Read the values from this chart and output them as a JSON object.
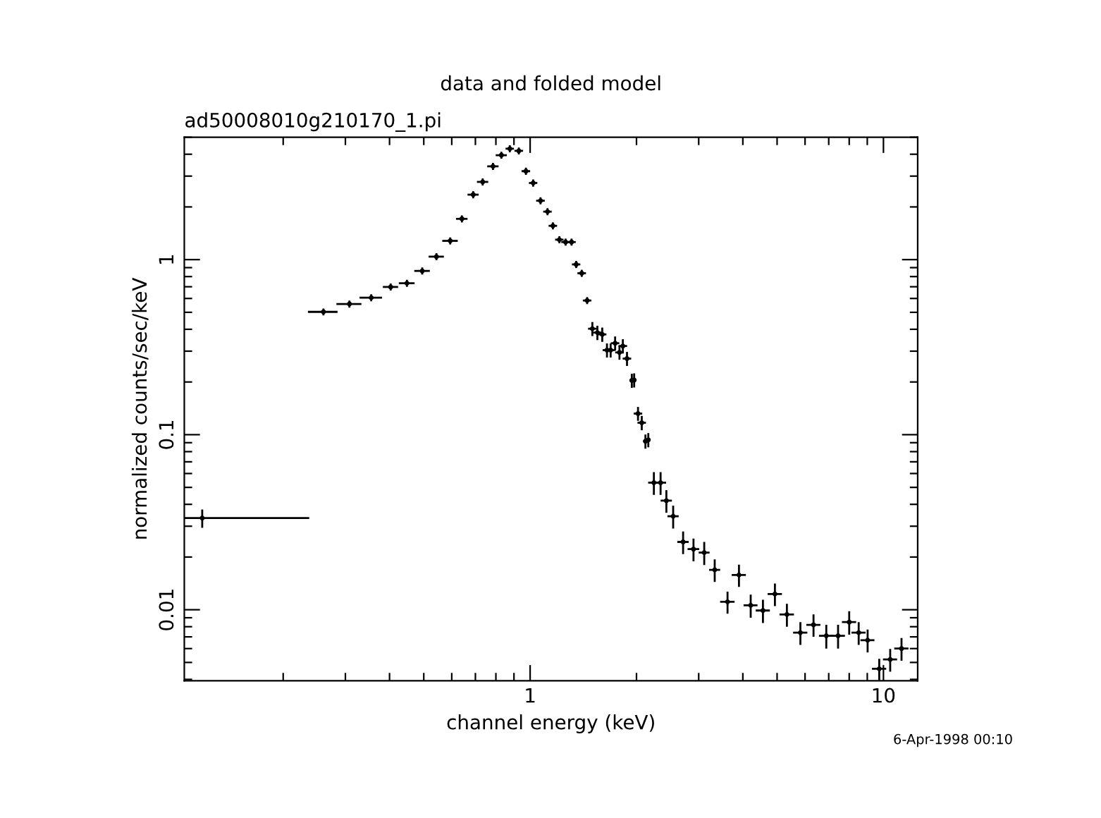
{
  "chart_data": {
    "type": "scatter",
    "title": "data and folded model",
    "subtitle": "ad50008010g210170_1.pi",
    "xlabel": "channel energy (keV)",
    "ylabel": "normalized counts/sec/keV",
    "annotations": [
      "6-Apr-1998 00:10"
    ],
    "log": "xy",
    "grid": false,
    "legend": false,
    "marker": "circle",
    "xlim": [
      0.105,
      12.5
    ],
    "ylim": [
      0.00393,
      5
    ],
    "xticks": [
      {
        "value": 0.2,
        "label": null
      },
      {
        "value": 0.3,
        "label": null
      },
      {
        "value": 0.4,
        "label": null
      },
      {
        "value": 0.5,
        "label": null
      },
      {
        "value": 0.6,
        "label": null
      },
      {
        "value": 0.7,
        "label": null
      },
      {
        "value": 0.8,
        "label": null
      },
      {
        "value": 0.9,
        "label": null
      },
      1,
      {
        "value": 2,
        "label": null
      },
      {
        "value": 3,
        "label": null
      },
      {
        "value": 4,
        "label": null
      },
      {
        "value": 5,
        "label": null
      },
      {
        "value": 6,
        "label": null
      },
      {
        "value": 7,
        "label": null
      },
      {
        "value": 8,
        "label": null
      },
      {
        "value": 9,
        "label": null
      },
      10
    ],
    "yticks": [
      {
        "value": 0.004,
        "label": null
      },
      {
        "value": 0.005,
        "label": null
      },
      {
        "value": 0.006,
        "label": null
      },
      {
        "value": 0.007,
        "label": null
      },
      {
        "value": 0.008,
        "label": null
      },
      {
        "value": 0.009,
        "label": null
      },
      0.01,
      {
        "value": 0.02,
        "label": null
      },
      {
        "value": 0.03,
        "label": null
      },
      {
        "value": 0.04,
        "label": null
      },
      {
        "value": 0.05,
        "label": null
      },
      {
        "value": 0.06,
        "label": null
      },
      {
        "value": 0.07,
        "label": null
      },
      {
        "value": 0.08,
        "label": null
      },
      {
        "value": 0.09,
        "label": null
      },
      0.1,
      {
        "value": 0.2,
        "label": null
      },
      {
        "value": 0.3,
        "label": null
      },
      {
        "value": 0.4,
        "label": null
      },
      {
        "value": 0.5,
        "label": null
      },
      {
        "value": 0.6,
        "label": null
      },
      {
        "value": 0.7,
        "label": null
      },
      {
        "value": 0.8,
        "label": null
      },
      {
        "value": 0.9,
        "label": null
      },
      1,
      {
        "value": 2,
        "label": null
      },
      {
        "value": 3,
        "label": null
      },
      {
        "value": 4,
        "label": null
      },
      {
        "value": 5,
        "label": null
      }
    ],
    "series": [
      {
        "color": "#000000",
        "x": [
          0.118,
          0.26,
          0.308,
          0.355,
          0.403,
          0.448,
          0.495,
          0.543,
          0.594,
          0.641,
          0.69,
          0.734,
          0.785,
          0.829,
          0.876,
          0.929,
          0.973,
          1.02,
          1.07,
          1.12,
          1.16,
          1.21,
          1.26,
          1.31,
          1.35,
          1.4,
          1.45,
          1.5,
          1.55,
          1.6,
          1.65,
          1.69,
          1.74,
          1.79,
          1.83,
          1.88,
          1.94,
          1.97,
          2.02,
          2.07,
          2.12,
          2.16,
          2.24,
          2.34,
          2.43,
          2.54,
          2.71,
          2.9,
          3.11,
          3.33,
          3.62,
          3.9,
          4.21,
          4.56,
          4.93,
          5.33,
          5.82,
          6.34,
          6.89,
          7.44,
          8.0,
          8.51,
          9.02,
          9.73,
          10.45,
          11.25
        ],
        "values": [
          0.0334,
          0.503,
          0.558,
          0.606,
          0.698,
          0.733,
          0.862,
          1.04,
          1.28,
          1.71,
          2.35,
          2.78,
          3.41,
          3.95,
          4.3,
          4.18,
          3.2,
          2.74,
          2.17,
          1.88,
          1.56,
          1.3,
          1.26,
          1.26,
          0.939,
          0.836,
          0.584,
          0.403,
          0.383,
          0.374,
          0.304,
          0.304,
          0.333,
          0.295,
          0.321,
          0.272,
          0.204,
          0.205,
          0.132,
          0.117,
          0.0917,
          0.0934,
          0.0532,
          0.0532,
          0.042,
          0.0342,
          0.0244,
          0.0222,
          0.0212,
          0.0169,
          0.0111,
          0.0158,
          0.0106,
          0.0099,
          0.0123,
          0.0094,
          0.0074,
          0.0082,
          0.0071,
          0.0071,
          0.0085,
          0.0074,
          0.0067,
          0.0046,
          0.0052,
          0.006
        ],
        "xerrors": [
          [
            0.105,
            0.237
          ],
          0.025,
          0.025,
          0.026,
          0.02,
          0.023,
          0.025,
          0.027,
          0.03,
          0.024,
          0.025,
          0.027,
          0.029,
          0.03,
          0.024,
          0.026,
          0.027,
          0.028,
          0.03,
          0.031,
          0.032,
          0.033,
          0.035,
          0.036,
          0.037,
          0.039,
          0.04,
          0.041,
          0.043,
          0.044,
          0.046,
          0.047,
          0.048,
          0.049,
          0.051,
          0.052,
          0.03,
          0.03,
          0.056,
          0.057,
          0.03,
          0.03,
          0.082,
          0.086,
          0.089,
          0.093,
          0.1,
          0.11,
          0.11,
          0.12,
          0.17,
          0.18,
          0.19,
          0.21,
          0.23,
          0.25,
          0.27,
          0.29,
          0.32,
          0.34,
          0.37,
          0.39,
          0.41,
          0.45,
          0.48,
          0.52
        ],
        "errors": [
          0.004,
          0.023,
          0.026,
          0.028,
          0.032,
          0.034,
          0.04,
          0.048,
          0.059,
          0.079,
          0.11,
          0.13,
          0.16,
          0.18,
          0.2,
          0.19,
          0.15,
          0.13,
          0.1,
          0.087,
          0.072,
          0.06,
          0.058,
          0.058,
          0.044,
          0.039,
          0.027,
          0.037,
          0.036,
          0.035,
          0.028,
          0.028,
          0.031,
          0.027,
          0.03,
          0.025,
          0.019,
          0.019,
          0.012,
          0.011,
          0.0085,
          0.0087,
          0.0079,
          0.0079,
          0.0062,
          0.0051,
          0.0036,
          0.0033,
          0.0032,
          0.0025,
          0.0016,
          0.0023,
          0.0016,
          0.0015,
          0.0018,
          0.0014,
          0.0011,
          0.0012,
          0.0011,
          0.0011,
          0.0013,
          0.0011,
          0.001,
          0.00065,
          0.00077,
          0.00089
        ]
      }
    ]
  }
}
